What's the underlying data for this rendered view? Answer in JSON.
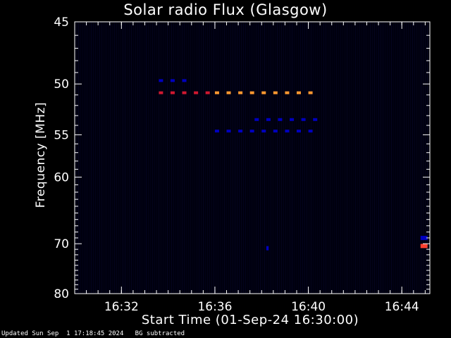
{
  "footer": {
    "updated": "Updated Sun Sep  1 17:18:45 2024",
    "bg_note": "BG subtracted"
  },
  "chart_data": {
    "type": "heatmap",
    "title": "Solar radio Flux (Glasgow)",
    "xlabel": "Start Time (01-Sep-24 16:30:00)",
    "ylabel": "Frequency [MHz]",
    "x_unit": "minutes since 16:30:00",
    "xlim": [
      0,
      15.2
    ],
    "ylim": [
      45,
      80
    ],
    "y_scale": "reciprocal",
    "x_ticks": [
      {
        "value": 2,
        "label": "16:32"
      },
      {
        "value": 6,
        "label": "16:36"
      },
      {
        "value": 10,
        "label": "16:40"
      },
      {
        "value": 14,
        "label": "16:44"
      }
    ],
    "y_ticks": [
      {
        "value": 45,
        "label": "45"
      },
      {
        "value": 50,
        "label": "50"
      },
      {
        "value": 55,
        "label": "55"
      },
      {
        "value": 60,
        "label": "60"
      },
      {
        "value": 70,
        "label": "70"
      },
      {
        "value": 80,
        "label": "80"
      }
    ],
    "y_minor_ticks": [
      46,
      47,
      48,
      49,
      51,
      52,
      53,
      54,
      56,
      57,
      58,
      59,
      61,
      62,
      63,
      64,
      65,
      66,
      67,
      68,
      69,
      71,
      72,
      73,
      74,
      75,
      76,
      77,
      78,
      79
    ],
    "x_minor_step": 0.5,
    "colors": {
      "low": "#000010",
      "weak": "#0000c0",
      "mid": "#d01830",
      "high": "#ff9830"
    },
    "features": [
      {
        "name": "red-dashes-51mhz",
        "freq": 50.8,
        "t_start": 3.6,
        "t_end": 5.9,
        "color": "#d01830"
      },
      {
        "name": "orange-dashes-51mhz",
        "freq": 50.8,
        "t_start": 6.0,
        "t_end": 10.3,
        "color": "#ff9830"
      },
      {
        "name": "blue-dashes-49.7mhz",
        "freq": 49.7,
        "t_start": 3.6,
        "t_end": 4.6,
        "color": "#0000c0"
      },
      {
        "name": "blue-dashes-53.4mhz",
        "freq": 53.4,
        "t_start": 7.7,
        "t_end": 10.3,
        "color": "#0000c0"
      },
      {
        "name": "blue-dashes-54.6mhz",
        "freq": 54.6,
        "t_start": 6.0,
        "t_end": 10.3,
        "color": "#0000c0"
      },
      {
        "name": "blue-blip-70.8mhz",
        "freq": 70.8,
        "t_start": 8.2,
        "t_end": 8.3,
        "color": "#0000c0"
      },
      {
        "name": "red-mark-70.4mhz",
        "freq": 70.4,
        "t_start": 14.8,
        "t_end": 15.1,
        "color": "#ff4030"
      },
      {
        "name": "blue-mark-69mhz",
        "freq": 69.0,
        "t_start": 14.8,
        "t_end": 15.1,
        "color": "#0000c0"
      }
    ]
  }
}
